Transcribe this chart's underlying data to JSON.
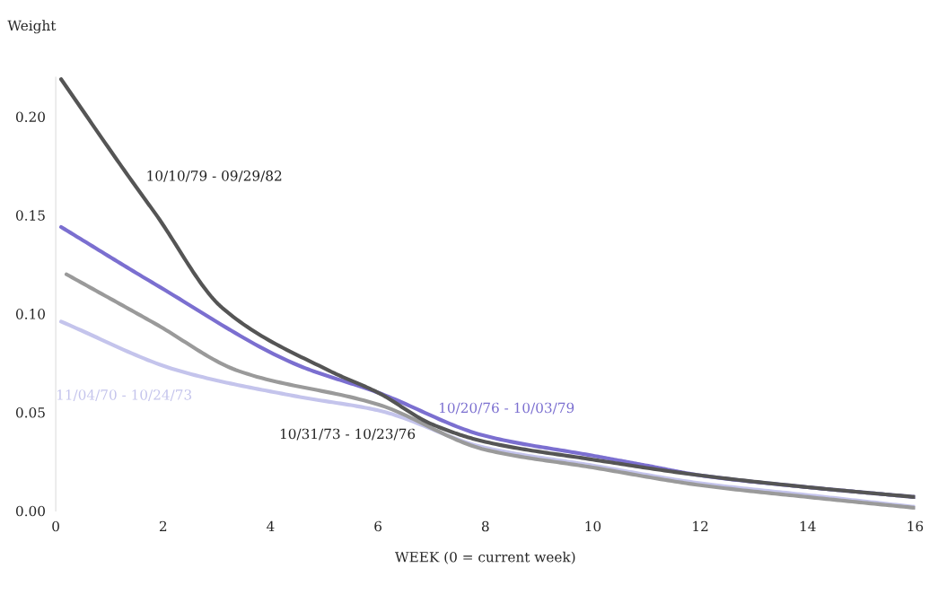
{
  "chart_data": {
    "type": "line",
    "xlabel": "WEEK (0 = current week)",
    "ylabel": "Weight",
    "xlim": [
      0,
      16
    ],
    "ylim": [
      0,
      0.22
    ],
    "xticks": [
      0,
      2,
      4,
      6,
      8,
      10,
      12,
      14,
      16
    ],
    "yticks": [
      {
        "value": 0,
        "label": "0.00"
      },
      {
        "value": 0.05,
        "label": "0.05"
      },
      {
        "value": 0.1,
        "label": "0.10"
      },
      {
        "value": 0.15,
        "label": "0.15"
      },
      {
        "value": 0.2,
        "label": "0.20"
      }
    ],
    "grid": false,
    "legend": false,
    "marker": "none",
    "line_style": "solid",
    "series": [
      {
        "name": "10/10/79 - 09/29/82",
        "color": "#555555",
        "x": [
          0.1,
          1.4,
          1.85,
          3.1,
          5.1,
          6,
          7,
          8,
          10,
          12,
          14,
          16
        ],
        "values": [
          0.219,
          0.168,
          0.151,
          0.103,
          0.071,
          0.06,
          0.044,
          0.035,
          0.026,
          0.018,
          0.012,
          0.007
        ]
      },
      {
        "name": "10/20/76 - 10/03/79",
        "color": "#7b6fd0",
        "x": [
          0.1,
          1.85,
          4.5,
          6,
          8,
          10,
          11,
          12,
          14,
          16
        ],
        "values": [
          0.144,
          0.115,
          0.074,
          0.06,
          0.038,
          0.028,
          0.023,
          0.018,
          0.012,
          0.007
        ]
      },
      {
        "name": "10/31/73 - 10/23/76",
        "color": "#9a9a9a",
        "x": [
          0.2,
          1.85,
          3.4,
          6,
          8,
          10,
          12,
          14,
          16
        ],
        "values": [
          0.12,
          0.095,
          0.071,
          0.054,
          0.031,
          0.022,
          0.013,
          0.007,
          0.0015
        ]
      },
      {
        "name": "11/04/70 - 10/24/73",
        "color": "#c4c4ec",
        "x": [
          0.1,
          2.3,
          4.5,
          6,
          8,
          10,
          12,
          14,
          16
        ],
        "values": [
          0.096,
          0.071,
          0.058,
          0.051,
          0.032,
          0.023,
          0.014,
          0.008,
          0.002
        ]
      }
    ]
  }
}
